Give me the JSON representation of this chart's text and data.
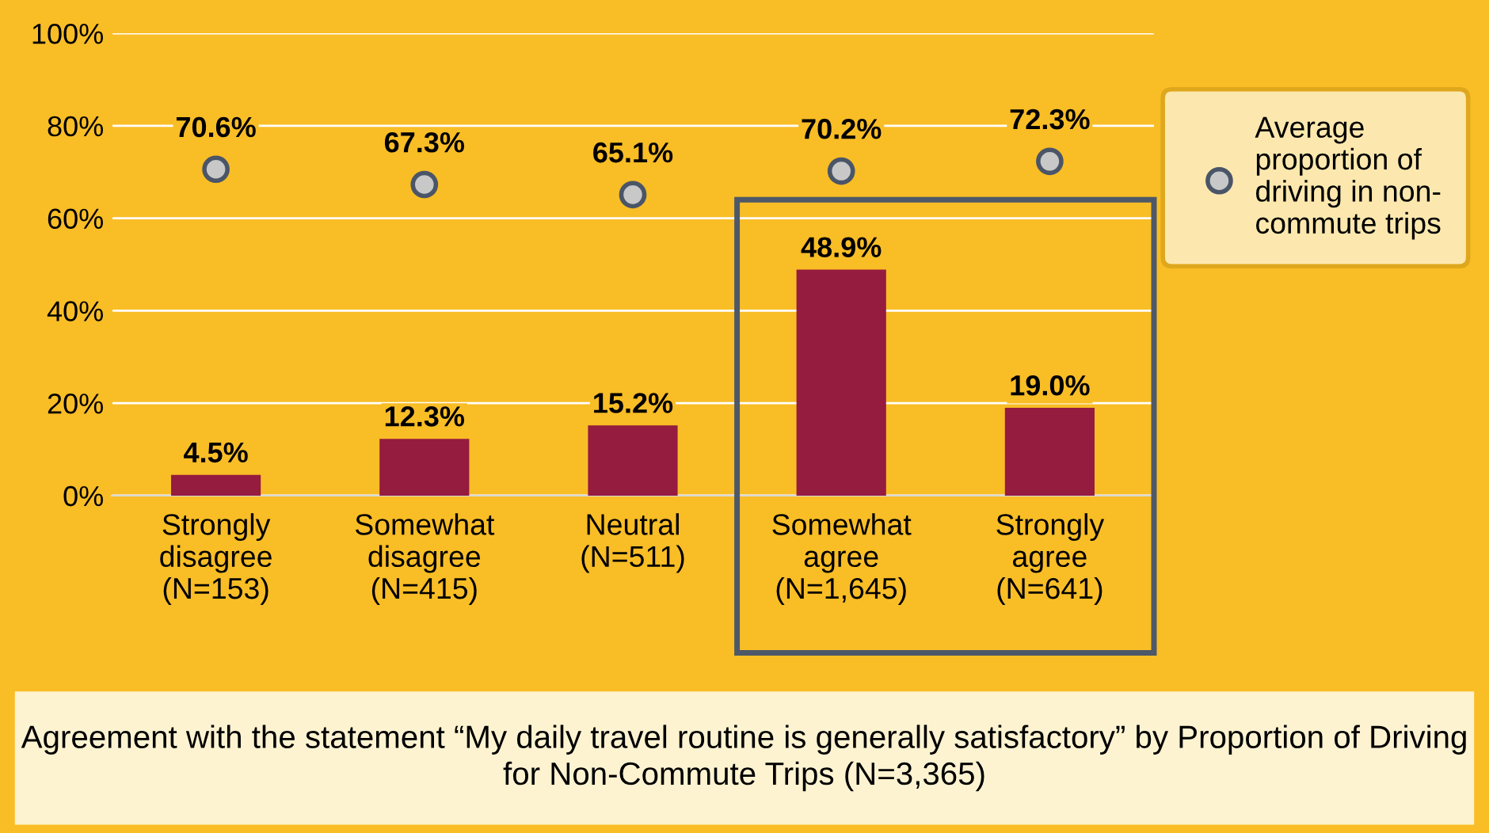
{
  "chart_data": {
    "type": "bar",
    "title": "Agreement with the statement “My daily travel routine is generally satisfactory” by Proportion of Driving for Non-Commute Trips (N=3,365)",
    "categories": [
      "Strongly\ndisagree\n(N=153)",
      "Somewhat\ndisagree\n(N=415)",
      "Neutral\n(N=511)",
      "Somewhat\nagree\n(N=1,645)",
      "Strongly\nagree\n(N=641)"
    ],
    "series": [
      {
        "color": "#951b3f",
        "values": [
          4.5,
          12.3,
          15.2,
          48.9,
          19.0
        ],
        "value_labels": [
          "4.5%",
          "12.3%",
          "15.2%",
          "48.9%",
          "19.0%"
        ]
      },
      {
        "type": "scatter",
        "name": "Average\nproportion of\ndriving in non-\ncommute trips",
        "color": "#c8c8c8",
        "values": [
          70.6,
          67.3,
          65.1,
          70.2,
          72.3
        ],
        "value_labels": [
          "70.6%",
          "67.3%",
          "65.1%",
          "70.2%",
          "72.3%"
        ]
      }
    ],
    "ylim": [
      0,
      100
    ],
    "yticks": [
      {
        "value": 0,
        "label": "0%"
      },
      {
        "value": 20,
        "label": "20%"
      },
      {
        "value": 40,
        "label": "40%"
      },
      {
        "value": 60,
        "label": "60%"
      },
      {
        "value": 80,
        "label": "80%"
      },
      {
        "value": 100,
        "label": "100%"
      }
    ],
    "grid": "y",
    "legend": "top right",
    "marker": "circle"
  }
}
